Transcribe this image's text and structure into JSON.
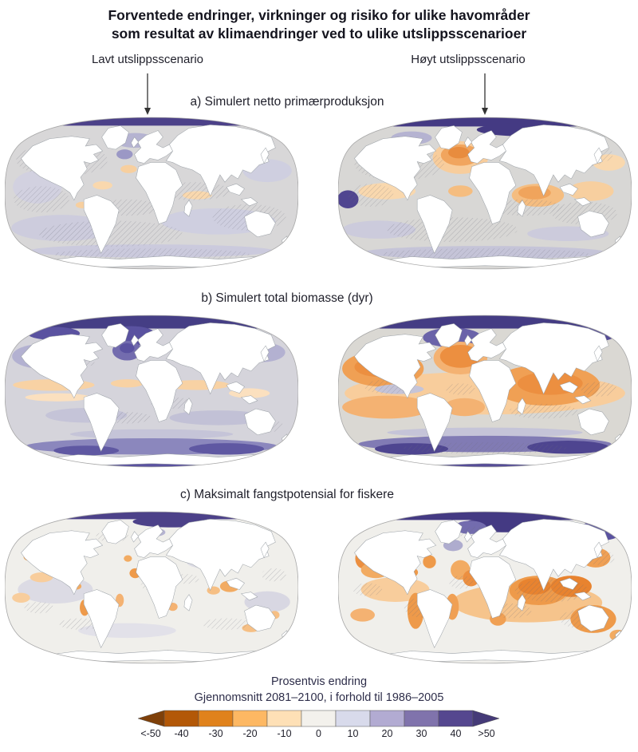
{
  "title": {
    "line1": "Forventede endringer, virkninger og risiko for ulike havområder",
    "line2": "som resultat av klimaendringer ved to ulike utslippsscenarioer"
  },
  "scenarios": {
    "low": "Lavt utslippsscenario",
    "high": "Høyt utslippsscenario"
  },
  "panels": {
    "a": {
      "caption": "a) Simulert netto primærproduksjon"
    },
    "b": {
      "caption": "b) Simulert total biomasse (dyr)"
    },
    "c": {
      "caption": "c) Maksimalt fangstpotensial for fiskere"
    }
  },
  "legend": {
    "title": "Prosentvis endring",
    "subtitle": "Gjennomsnitt 2081–2100, i forhold til 1986–2005",
    "categories": [
      "<-50",
      "-40",
      "-30",
      "-20",
      "-10",
      "0",
      "10",
      "20",
      "30",
      "40",
      ">50"
    ],
    "colors": [
      "#7f4009",
      "#b35807",
      "#e0821c",
      "#fdb863",
      "#fee0b6",
      "#f3f1ec",
      "#d8daeb",
      "#b2abd2",
      "#8073ac",
      "#55478f",
      "#453a78"
    ]
  },
  "chart_data": {
    "type": "heatmap",
    "subtype": "world-map-choropleth-panels",
    "title": "Forventede endringer, virkninger og risiko for ulike havområder som resultat av klimaendringer ved to ulike utslippsscenarioer",
    "unit": "Prosentvis endring",
    "baseline": "Gjennomsnitt 2081–2100, i forhold til 1986–2005",
    "scale": {
      "categories": [
        "<-50",
        "-40",
        "-30",
        "-20",
        "-10",
        "0",
        "10",
        "20",
        "30",
        "40",
        ">50"
      ],
      "colors": [
        "#7f4009",
        "#b35807",
        "#e0821c",
        "#fdb863",
        "#fee0b6",
        "#f3f1ec",
        "#d8daeb",
        "#b2abd2",
        "#8073ac",
        "#55478f",
        "#453a78"
      ],
      "negative_direction_color_family": "brun/oransje (nedgang)",
      "positive_direction_color_family": "lilla (økning)"
    },
    "columns": [
      "Lavt utslippsscenario",
      "Høyt utslippsscenario"
    ],
    "panels": [
      {
        "id": "a",
        "label": "a) Simulert netto primærproduksjon",
        "low_scenario_summary": "Svake endringer (mest -10 til +10), store skraverte områder, mørk lilla økning langs Arktis",
        "high_scenario_summary": "Tydelig nedgang (oransje) i Nord-Atlanteren, tropisk Atlanterhav og Indiahavet; mørk lilla økning i Arktis; utbredt skravering"
      },
      {
        "id": "b",
        "label": "b) Simulert total biomasse (dyr)",
        "low_scenario_summary": "Svak nedgang i tropene, lilla økning i Arktis og rundt Antarktis",
        "high_scenario_summary": "Sterk nedgang (oransje) i store deler av verdenshavene på midlere/lave breddegrader; sterk lilla økning i polare områder"
      },
      {
        "id": "c",
        "label": "c) Maksimalt fangstpotensial for fiskere",
        "low_scenario_summary": "Moderat nedgang (oransje flekker) langs mange kyster; lilla økning i Arktis; spredt skravering",
        "high_scenario_summary": "Sterk nedgang (kraftig oransje) langs de fleste kyster, i Indiahavet og Sørøst-Asia; lilla økning i Arktis; tett skravering"
      }
    ]
  }
}
